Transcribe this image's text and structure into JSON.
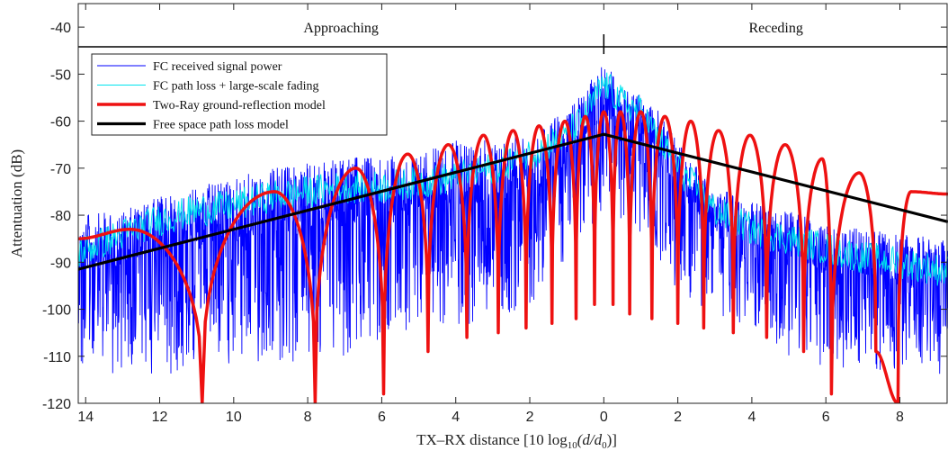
{
  "chart_data": {
    "type": "line",
    "title": "",
    "xlabel": "TX–RX distance [10 log",
    "xlabel_sub": "10",
    "xlabel_tail": "(d/d",
    "xlabel_sub2": "0",
    "xlabel_end": ")]",
    "ylabel": "Attentuation (dB)",
    "ylim": [
      -120,
      -35
    ],
    "xlim": [
      -14.2,
      9.3
    ],
    "yticks": [
      -120,
      -110,
      -100,
      -90,
      -80,
      -70,
      -60,
      -50,
      -40
    ],
    "yticklabels": [
      "-120",
      "-110",
      "-100",
      "-90",
      "-80",
      "-70",
      "-60",
      "-50",
      "-40"
    ],
    "xticks": [
      -14,
      -12,
      -10,
      -8,
      -6,
      -4,
      -2,
      0,
      2,
      4,
      6,
      8
    ],
    "xticklabels": [
      "14",
      "12",
      "10",
      "8",
      "6",
      "4",
      "2",
      "0",
      "2",
      "4",
      "6",
      "8"
    ],
    "regions": {
      "left_label": "Approaching",
      "right_label": "Receding",
      "divider_y": -44.2
    },
    "legend_position": "top-left",
    "series": [
      {
        "name": "FC received signal power",
        "color": "#0000ff",
        "style": "thin noisy",
        "x": [
          -14.2,
          -13,
          -12,
          -11,
          -10,
          -9,
          -8,
          -7,
          -6,
          -5,
          -4,
          -3,
          -2,
          -1,
          -0.5,
          0,
          0.5,
          1,
          1.5,
          2,
          3,
          4,
          5,
          6,
          7,
          8,
          9.3
        ],
        "upper": [
          -80,
          -79,
          -76,
          -74,
          -72,
          -70,
          -69,
          -68,
          -67,
          -67,
          -64,
          -64,
          -62,
          -58,
          -53,
          -47,
          -53,
          -54,
          -58,
          -64,
          -74,
          -77,
          -79,
          -82,
          -83,
          -84,
          -85
        ],
        "lower": [
          -113,
          -115,
          -114,
          -113,
          -112,
          -112,
          -111,
          -110,
          -107,
          -104,
          -104,
          -102,
          -100,
          -90,
          -83,
          -80,
          -82,
          -84,
          -90,
          -96,
          -102,
          -104,
          -110,
          -113,
          -112,
          -115,
          -115
        ]
      },
      {
        "name": "FC path loss + large-scale fading",
        "color": "#00e5ee",
        "style": "thin",
        "x": [
          -14.2,
          -13,
          -12,
          -11,
          -10,
          -9,
          -8,
          -7,
          -6,
          -5,
          -4,
          -3,
          -2,
          -1,
          -0.5,
          0,
          0.5,
          1,
          1.5,
          2,
          3,
          4,
          5,
          6,
          7,
          8,
          9.3
        ],
        "y": [
          -88,
          -84,
          -81,
          -79,
          -78,
          -76,
          -75,
          -74,
          -74,
          -73,
          -72,
          -70,
          -67,
          -63,
          -59,
          -52,
          -56,
          -58,
          -64,
          -70,
          -79,
          -83,
          -85,
          -87,
          -89,
          -90,
          -92
        ]
      },
      {
        "name": "Two-Ray ground-reflection model",
        "color": "#ee1111",
        "style": "thick",
        "peaks_x": [
          -12.8,
          -8.9,
          -6.7,
          -5.3,
          -4.2,
          -3.25,
          -2.45,
          -1.75,
          -1.05,
          -0.5,
          0,
          0.45,
          1.0,
          1.65,
          2.35,
          3.1,
          3.95,
          4.9,
          5.9,
          6.9,
          8.3
        ],
        "peaks_y": [
          -83,
          -75,
          -70,
          -67,
          -65,
          -63,
          -62,
          -61,
          -60,
          -59,
          -58,
          -58,
          -58,
          -59,
          -60,
          -62,
          -63,
          -65,
          -68,
          -71,
          -75
        ],
        "nulls_x": [
          -10.85,
          -7.8,
          -5.95,
          -4.75,
          -3.7,
          -2.85,
          -2.1,
          -1.4,
          -0.75,
          -0.25,
          0.25,
          0.7,
          1.3,
          2.0,
          2.7,
          3.5,
          4.4,
          5.4,
          6.15,
          7.35,
          7.95
        ],
        "nulls_y": [
          -120,
          -120,
          -118,
          -109,
          -106,
          -105,
          -104,
          -103,
          -102,
          -99,
          -99,
          -101,
          -102,
          -103,
          -104,
          -105,
          -106,
          -109,
          -118,
          -109,
          -120
        ]
      },
      {
        "name": "Free space path loss model",
        "color": "#000000",
        "style": "thick",
        "x": [
          -14.2,
          0,
          9.3
        ],
        "y": [
          -91.5,
          -62.8,
          -81.4
        ]
      }
    ]
  }
}
